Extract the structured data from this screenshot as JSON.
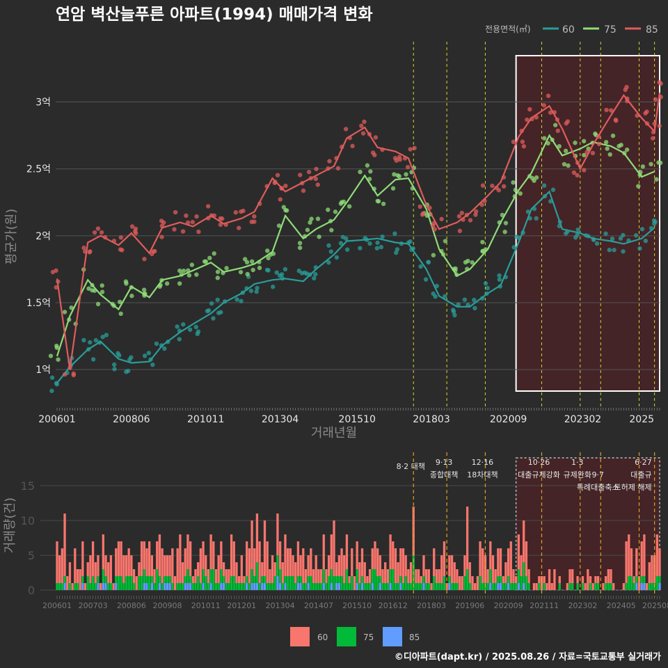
{
  "title": "연암 벽산늘푸른 아파트(1994) 매매가격 변화",
  "credit": "©디아파트(dapt.kr) / 2025.08.26 / 자료=국토교통부 실거래가",
  "legend": {
    "title": "전용면적(㎡)",
    "items": [
      {
        "label": "60",
        "color": "#2a9d9a"
      },
      {
        "label": "75",
        "color": "#8fdc78"
      },
      {
        "label": "85",
        "color": "#e05c5c"
      }
    ]
  },
  "bottom_legend": [
    {
      "label": "60",
      "color": "#f8766d"
    },
    {
      "label": "75",
      "color": "#00ba38"
    },
    {
      "label": "85",
      "color": "#619cff"
    }
  ],
  "chart_data": [
    {
      "type": "line",
      "xlabel": "거래년월",
      "ylabel": "평균가(원)",
      "x_ticks": [
        "200601",
        "200806",
        "201011",
        "201304",
        "201510",
        "201803",
        "202009",
        "202302",
        "2025"
      ],
      "y_ticks": [
        "1억",
        "1.5억",
        "2억",
        "2.5억",
        "3억"
      ],
      "y_tick_values": [
        10000,
        15000,
        20000,
        25000,
        30000
      ],
      "ylim": [
        7200,
        34500
      ],
      "xlim": [
        "2006-01",
        "2025-08"
      ],
      "highlight_range": [
        "2020-12",
        "2025-08"
      ],
      "policy_dates": [
        "2017-08",
        "2018-09",
        "2019-12",
        "2021-10",
        "2023-01",
        "2023-09",
        "2024-12",
        "2025-06"
      ],
      "series": [
        {
          "name": "60",
          "color": "#2a9d9a",
          "x": [
            "2006-01",
            "2006-06",
            "2007-01",
            "2007-06",
            "2008-01",
            "2008-06",
            "2009-01",
            "2009-06",
            "2010-01",
            "2010-06",
            "2011-01",
            "2011-06",
            "2012-01",
            "2012-06",
            "2013-01",
            "2013-06",
            "2014-01",
            "2014-06",
            "2015-01",
            "2015-06",
            "2016-01",
            "2016-06",
            "2017-01",
            "2017-06",
            "2018-01",
            "2018-06",
            "2019-01",
            "2019-06",
            "2020-01",
            "2020-06",
            "2021-01",
            "2021-06",
            "2022-01",
            "2022-06",
            "2023-01",
            "2023-06",
            "2024-01",
            "2024-06",
            "2025-01",
            "2025-06"
          ],
          "y": [
            9000,
            10200,
            11500,
            12100,
            10800,
            10500,
            10600,
            11800,
            12800,
            13400,
            14200,
            15000,
            15700,
            16400,
            16700,
            16800,
            16600,
            17500,
            18600,
            19600,
            19700,
            19800,
            19500,
            19400,
            17500,
            15500,
            14700,
            14700,
            15700,
            16300,
            19500,
            22000,
            23300,
            20500,
            20200,
            19800,
            19600,
            19400,
            19800,
            20600
          ]
        },
        {
          "name": "75",
          "color": "#8fdc78",
          "x": [
            "2006-01",
            "2006-06",
            "2007-01",
            "2007-06",
            "2008-01",
            "2008-06",
            "2009-01",
            "2009-06",
            "2010-01",
            "2010-06",
            "2011-01",
            "2011-06",
            "2012-01",
            "2012-06",
            "2013-01",
            "2013-06",
            "2014-01",
            "2014-06",
            "2015-01",
            "2015-06",
            "2016-01",
            "2016-06",
            "2017-01",
            "2017-06",
            "2018-01",
            "2018-06",
            "2019-01",
            "2019-06",
            "2020-01",
            "2020-06",
            "2021-01",
            "2021-06",
            "2022-01",
            "2022-06",
            "2023-01",
            "2023-06",
            "2024-01",
            "2024-06",
            "2025-01",
            "2025-06"
          ],
          "y": [
            11000,
            14000,
            16700,
            15600,
            14500,
            16200,
            15400,
            16700,
            17000,
            17400,
            18000,
            17300,
            17600,
            17900,
            18800,
            21500,
            19800,
            20500,
            21200,
            22500,
            24500,
            23000,
            24200,
            24300,
            22000,
            19000,
            17000,
            17500,
            19000,
            21000,
            23400,
            24700,
            27500,
            26000,
            26500,
            27000,
            26700,
            26200,
            24400,
            24800
          ]
        },
        {
          "name": "85",
          "color": "#e05c5c",
          "x": [
            "2006-01",
            "2006-06",
            "2007-01",
            "2007-06",
            "2008-01",
            "2008-06",
            "2009-01",
            "2009-06",
            "2010-01",
            "2010-06",
            "2011-01",
            "2011-06",
            "2012-01",
            "2012-06",
            "2013-01",
            "2013-06",
            "2014-01",
            "2014-06",
            "2015-01",
            "2015-06",
            "2016-01",
            "2016-06",
            "2017-01",
            "2017-06",
            "2018-01",
            "2018-06",
            "2019-01",
            "2019-06",
            "2020-01",
            "2020-06",
            "2021-01",
            "2021-06",
            "2022-01",
            "2022-06",
            "2023-01",
            "2023-06",
            "2024-01",
            "2024-06",
            "2025-01",
            "2025-06",
            "2025-08"
          ],
          "y": [
            16800,
            10000,
            19500,
            20000,
            19300,
            20200,
            18700,
            20600,
            21000,
            20700,
            21500,
            20900,
            21300,
            21800,
            24300,
            23300,
            24000,
            24500,
            25200,
            27300,
            28100,
            26600,
            26300,
            25800,
            22300,
            20500,
            21000,
            21700,
            23000,
            24000,
            27400,
            28800,
            29700,
            28000,
            25000,
            26800,
            29000,
            30500,
            28800,
            27800,
            30700
          ]
        }
      ]
    },
    {
      "type": "bar",
      "stacked": true,
      "ylabel": "거래량(건)",
      "y_ticks": [
        "0",
        "5",
        "10",
        "15"
      ],
      "y_tick_values": [
        0,
        5,
        10,
        15
      ],
      "ylim": [
        0,
        19
      ],
      "x_ticks": [
        "200601",
        "200703",
        "200806",
        "200908",
        "201011",
        "201201",
        "201304",
        "201407",
        "201510",
        "201612",
        "201803",
        "201906",
        "202009",
        "202111",
        "202302",
        "202405",
        "202508"
      ],
      "policy_annotations": [
        {
          "x": "2017-08",
          "lines": [
            "8·2 대책"
          ]
        },
        {
          "x": "2018-09",
          "lines": [
            "9·13",
            "종합대책"
          ]
        },
        {
          "x": "2019-12",
          "lines": [
            "12·16",
            "18차대책"
          ]
        },
        {
          "x": "2021-10",
          "lines": [
            "10·26",
            "대출규제강화"
          ]
        },
        {
          "x": "2023-01",
          "lines": [
            "1·3",
            "규제완화"
          ]
        },
        {
          "x": "2023-09",
          "lines": [
            "9·7",
            "특례대출축소"
          ]
        },
        {
          "x": "2025-06",
          "lines": [
            "6·27",
            "대출규",
            "토허제 해제"
          ]
        }
      ],
      "series": [
        {
          "name": "60",
          "color": "#f8766d"
        },
        {
          "name": "75",
          "color": "#00ba38"
        },
        {
          "name": "85",
          "color": "#619cff"
        }
      ],
      "monthly_total_range": [
        0,
        13
      ]
    }
  ]
}
